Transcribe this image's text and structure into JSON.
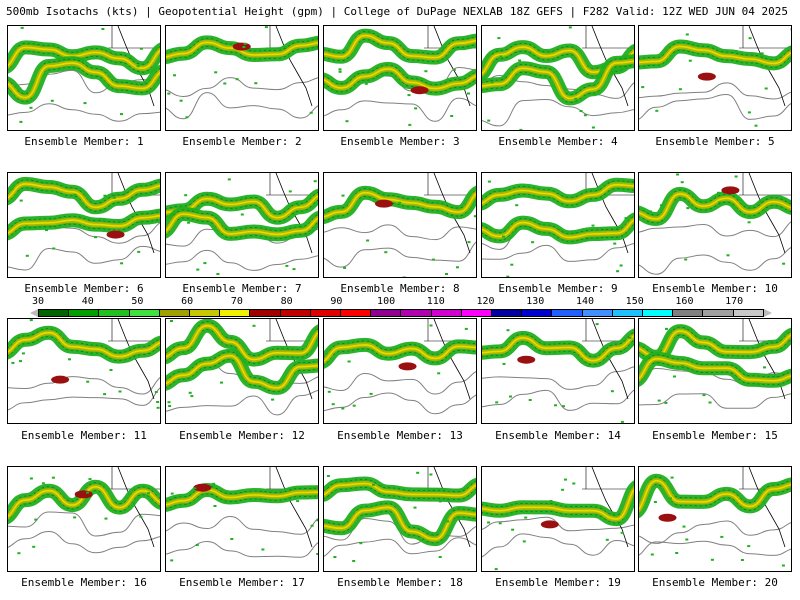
{
  "header": {
    "left": "500mb Isotachs (kts) | Geopotential Height (gpm) | College of DuPage NEXLAB",
    "right": "18Z GEFS | F282 Valid: 12Z WED JUN 04 2025"
  },
  "legend": {
    "tick_labels": [
      "30",
      "40",
      "50",
      "60",
      "70",
      "80",
      "90",
      "100",
      "110",
      "120",
      "130",
      "140",
      "150",
      "160",
      "170"
    ],
    "colors": [
      "#006400",
      "#00a000",
      "#20c020",
      "#40e040",
      "#a0a000",
      "#c8c800",
      "#f0f000",
      "#a00000",
      "#c00000",
      "#e00000",
      "#ff0000",
      "#900090",
      "#b000b0",
      "#d000d0",
      "#ff00ff",
      "#0000a0",
      "#0000d0",
      "#2060ff",
      "#4090ff",
      "#20c0ff",
      "#00ffff",
      "#808080",
      "#a0a0a0",
      "#c8c8c8"
    ],
    "jet_colors": [
      "#20b020",
      "#b4b400",
      "#e0e000",
      "#9a1010"
    ]
  },
  "panels": [
    {
      "label": "Ensemble Member: 1"
    },
    {
      "label": "Ensemble Member: 2"
    },
    {
      "label": "Ensemble Member: 3"
    },
    {
      "label": "Ensemble Member: 4"
    },
    {
      "label": "Ensemble Member: 5"
    },
    {
      "label": "Ensemble Member: 6"
    },
    {
      "label": "Ensemble Member: 7"
    },
    {
      "label": "Ensemble Member: 8"
    },
    {
      "label": "Ensemble Member: 9"
    },
    {
      "label": "Ensemble Member: 10"
    },
    {
      "label": "Ensemble Member: 11"
    },
    {
      "label": "Ensemble Member: 12"
    },
    {
      "label": "Ensemble Member: 13"
    },
    {
      "label": "Ensemble Member: 14"
    },
    {
      "label": "Ensemble Member: 15"
    },
    {
      "label": "Ensemble Member: 16"
    },
    {
      "label": "Ensemble Member: 17"
    },
    {
      "label": "Ensemble Member: 18"
    },
    {
      "label": "Ensemble Member: 19"
    },
    {
      "label": "Ensemble Member: 20"
    }
  ]
}
